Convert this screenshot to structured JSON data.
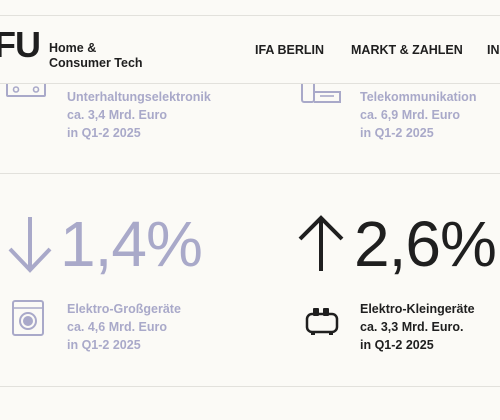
{
  "header": {
    "logo_mark": "FU",
    "logo_line1": "Home &",
    "logo_line2": "Consumer Tech",
    "nav": [
      "IFA BERLIN",
      "MARKT & ZAHLEN",
      "IN"
    ]
  },
  "stats": [
    {
      "category": "Unterhaltungselektronik",
      "amount": "ca. 3,4 Mrd. Euro",
      "period": "in Q1-2 2025",
      "icon": "av-receiver-icon",
      "color": "#a9a9c9"
    },
    {
      "category": "Telekommunikation",
      "amount": "ca. 6,9 Mrd. Euro",
      "period": "in Q1-2 2025",
      "icon": "telephone-icon",
      "color": "#a9a9c9"
    },
    {
      "direction": "down",
      "change": "1,4%",
      "category": "Elektro-Großgeräte",
      "amount": "ca. 4,6 Mrd. Euro",
      "period": "in Q1-2 2025",
      "icon": "washing-machine-icon",
      "color": "#a9a9c9"
    },
    {
      "direction": "up",
      "change": "2,6%",
      "category": "Elektro-Kleingeräte",
      "amount": "ca. 3,3 Mrd. Euro.",
      "period": "in Q1-2 2025",
      "icon": "toaster-icon",
      "color": "#1f1f1f"
    }
  ]
}
